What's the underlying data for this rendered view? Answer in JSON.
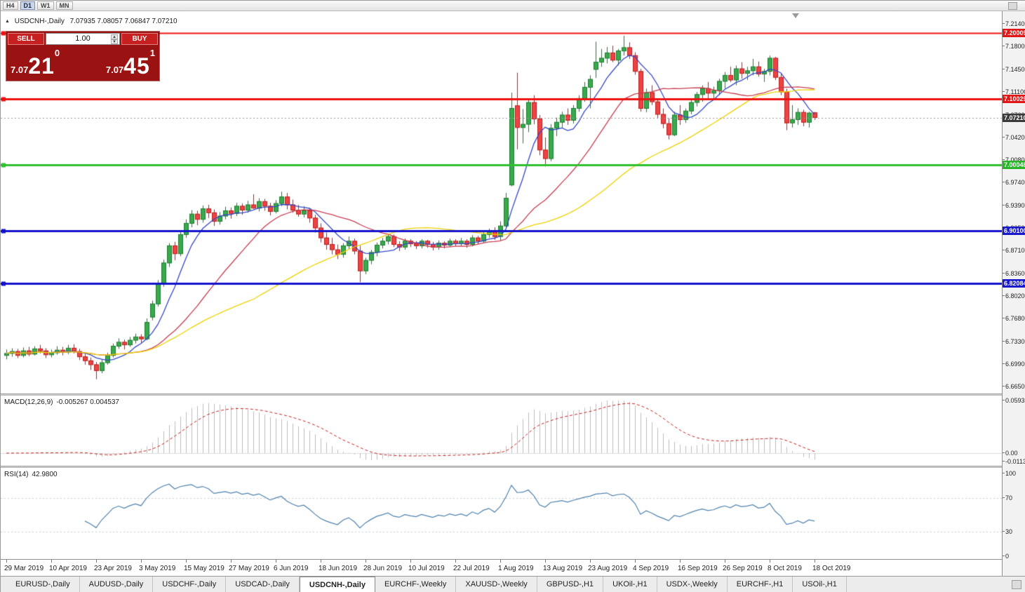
{
  "colors": {
    "trade_panel_bg": "#9b1212",
    "trade_button_bg": "#c62020",
    "up_candle": "#3aa94d",
    "down_candle": "#ef4242",
    "chart_background": "#ffffff"
  },
  "toolbar": {
    "timeframes": [
      {
        "label": "H4",
        "active": false
      },
      {
        "label": "D1",
        "active": true
      },
      {
        "label": "W1",
        "active": false
      },
      {
        "label": "MN",
        "active": false
      }
    ]
  },
  "chart": {
    "title_symbol": "USDCNH-,Daily",
    "title_ohlc": "7.07935 7.08057 7.06847 7.07210"
  },
  "trade_panel": {
    "sell_label": "SELL",
    "buy_label": "BUY",
    "volume": "1.00",
    "sell_price_small": "7.07",
    "sell_price_big": "21",
    "sell_price_sup": "0",
    "buy_price_small": "7.07",
    "buy_price_big": "45",
    "buy_price_sup": "1"
  },
  "price_axis": {
    "ticks": [
      {
        "label": "7.21400",
        "value": 7.214
      },
      {
        "label": "7.18000",
        "value": 7.18
      },
      {
        "label": "7.14500",
        "value": 7.145
      },
      {
        "label": "7.11100",
        "value": 7.111
      },
      {
        "label": "7.07600",
        "value": 7.076
      },
      {
        "label": "7.04200",
        "value": 7.042
      },
      {
        "label": "7.00800",
        "value": 7.008
      },
      {
        "label": "6.97400",
        "value": 6.974
      },
      {
        "label": "6.93900",
        "value": 6.939
      },
      {
        "label": "6.90500",
        "value": 6.905
      },
      {
        "label": "6.87100",
        "value": 6.871
      },
      {
        "label": "6.83600",
        "value": 6.836
      },
      {
        "label": "6.80200",
        "value": 6.802
      },
      {
        "label": "6.76800",
        "value": 6.768
      },
      {
        "label": "6.73300",
        "value": 6.733
      },
      {
        "label": "6.69900",
        "value": 6.699
      },
      {
        "label": "6.66500",
        "value": 6.665
      }
    ],
    "badges": [
      {
        "label": "7.20009",
        "value": 7.20009,
        "color": "#e01717",
        "kind": "level"
      },
      {
        "label": "7.10029",
        "value": 7.10029,
        "color": "#e01717",
        "kind": "level"
      },
      {
        "label": "7.07210",
        "value": 7.0721,
        "color": "#3a3a3a",
        "kind": "bid"
      },
      {
        "label": "7.00048",
        "value": 7.00048,
        "color": "#2ab42a",
        "kind": "level"
      },
      {
        "label": "6.90100",
        "value": 6.901,
        "color": "#1a1acc",
        "kind": "level"
      },
      {
        "label": "6.82084",
        "value": 6.82084,
        "color": "#1a1acc",
        "kind": "level"
      }
    ]
  },
  "hlines": [
    {
      "value": 7.20009,
      "color": "#ee1111",
      "width": 2
    },
    {
      "value": 7.10029,
      "color": "#ee1111",
      "width": 3
    },
    {
      "value": 7.00048,
      "color": "#2fbf2f",
      "width": 3
    },
    {
      "value": 6.901,
      "color": "#1212cc",
      "width": 3
    },
    {
      "value": 6.82084,
      "color": "#1212cc",
      "width": 3
    }
  ],
  "chart_data": {
    "type": "candlestick",
    "symbol": "USDCNH-",
    "timeframe": "Daily",
    "price_range": [
      6.6544,
      7.2331
    ],
    "x_labels": [
      "29 Mar 2019",
      "10 Apr 2019",
      "23 Apr 2019",
      "3 May 2019",
      "15 May 2019",
      "27 May 2019",
      "6 Jun 2019",
      "18 Jun 2019",
      "28 Jun 2019",
      "10 Jul 2019",
      "22 Jul 2019",
      "1 Aug 2019",
      "13 Aug 2019",
      "23 Aug 2019",
      "4 Sep 2019",
      "16 Sep 2019",
      "26 Sep 2019",
      "8 Oct 2019",
      "18 Oct 2019"
    ],
    "candles": [
      [
        6.712,
        6.721,
        6.706,
        6.715
      ],
      [
        6.715,
        6.723,
        6.71,
        6.718
      ],
      [
        6.718,
        6.722,
        6.708,
        6.712
      ],
      [
        6.712,
        6.724,
        6.709,
        6.719
      ],
      [
        6.719,
        6.725,
        6.711,
        6.714
      ],
      [
        6.714,
        6.726,
        6.712,
        6.722
      ],
      [
        6.722,
        6.728,
        6.715,
        6.719
      ],
      [
        6.719,
        6.723,
        6.708,
        6.713
      ],
      [
        6.713,
        6.721,
        6.709,
        6.716
      ],
      [
        6.716,
        6.726,
        6.713,
        6.72
      ],
      [
        6.72,
        6.725,
        6.712,
        6.717
      ],
      [
        6.717,
        6.728,
        6.714,
        6.723
      ],
      [
        6.723,
        6.729,
        6.715,
        6.718
      ],
      [
        6.718,
        6.722,
        6.705,
        6.71
      ],
      [
        6.71,
        6.715,
        6.698,
        6.704
      ],
      [
        6.704,
        6.709,
        6.69,
        6.698
      ],
      [
        6.698,
        6.702,
        6.676,
        6.689
      ],
      [
        6.689,
        6.706,
        6.685,
        6.701
      ],
      [
        6.701,
        6.716,
        6.698,
        6.712
      ],
      [
        6.712,
        6.73,
        6.709,
        6.726
      ],
      [
        6.726,
        6.738,
        6.722,
        6.732
      ],
      [
        6.732,
        6.736,
        6.721,
        6.728
      ],
      [
        6.728,
        6.74,
        6.725,
        6.735
      ],
      [
        6.735,
        6.745,
        6.73,
        6.74
      ],
      [
        6.74,
        6.744,
        6.731,
        6.737
      ],
      [
        6.737,
        6.768,
        6.735,
        6.762
      ],
      [
        6.77,
        6.795,
        6.765,
        6.79
      ],
      [
        6.79,
        6.826,
        6.786,
        6.821
      ],
      [
        6.821,
        6.857,
        6.816,
        6.852
      ],
      [
        6.852,
        6.882,
        6.846,
        6.878
      ],
      [
        6.878,
        6.884,
        6.856,
        6.866
      ],
      [
        6.866,
        6.9,
        6.862,
        6.895
      ],
      [
        6.895,
        6.918,
        6.89,
        6.912
      ],
      [
        6.912,
        6.932,
        6.906,
        6.926
      ],
      [
        6.926,
        6.931,
        6.909,
        6.918
      ],
      [
        6.918,
        6.939,
        6.913,
        6.934
      ],
      [
        6.934,
        6.94,
        6.92,
        6.928
      ],
      [
        6.928,
        6.933,
        6.908,
        6.915
      ],
      [
        6.915,
        6.929,
        6.91,
        6.923
      ],
      [
        6.923,
        6.937,
        6.918,
        6.931
      ],
      [
        6.931,
        6.936,
        6.919,
        6.927
      ],
      [
        6.927,
        6.943,
        6.923,
        6.938
      ],
      [
        6.938,
        6.942,
        6.925,
        6.932
      ],
      [
        6.932,
        6.946,
        6.928,
        6.94
      ],
      [
        6.94,
        6.956,
        6.934,
        6.935
      ],
      [
        6.935,
        6.95,
        6.93,
        6.945
      ],
      [
        6.945,
        6.949,
        6.931,
        6.938
      ],
      [
        6.938,
        6.943,
        6.924,
        6.93
      ],
      [
        6.93,
        6.947,
        6.927,
        6.942
      ],
      [
        6.942,
        6.96,
        6.938,
        6.952
      ],
      [
        6.952,
        6.958,
        6.933,
        6.94
      ],
      [
        6.94,
        6.948,
        6.928,
        6.932
      ],
      [
        6.932,
        6.94,
        6.922,
        6.926
      ],
      [
        6.926,
        6.938,
        6.921,
        6.931
      ],
      [
        6.931,
        6.935,
        6.913,
        6.92
      ],
      [
        6.92,
        6.925,
        6.898,
        6.905
      ],
      [
        6.905,
        6.912,
        6.883,
        6.89
      ],
      [
        6.89,
        6.898,
        6.872,
        6.88
      ],
      [
        6.88,
        6.89,
        6.865,
        6.872
      ],
      [
        6.872,
        6.88,
        6.858,
        6.865
      ],
      [
        6.865,
        6.882,
        6.86,
        6.878
      ],
      [
        6.878,
        6.892,
        6.873,
        6.885
      ],
      [
        6.885,
        6.889,
        6.865,
        6.87
      ],
      [
        6.87,
        6.878,
        6.823,
        6.84
      ],
      [
        6.84,
        6.86,
        6.835,
        6.856
      ],
      [
        6.856,
        6.872,
        6.85,
        6.868
      ],
      [
        6.868,
        6.883,
        6.862,
        6.879
      ],
      [
        6.879,
        6.89,
        6.874,
        6.885
      ],
      [
        6.885,
        6.896,
        6.88,
        6.892
      ],
      [
        6.892,
        6.895,
        6.876,
        6.88
      ],
      [
        6.88,
        6.885,
        6.87,
        6.876
      ],
      [
        6.876,
        6.889,
        6.872,
        6.885
      ],
      [
        6.885,
        6.888,
        6.876,
        6.881
      ],
      [
        6.881,
        6.885,
        6.873,
        6.878
      ],
      [
        6.878,
        6.888,
        6.874,
        6.885
      ],
      [
        6.885,
        6.887,
        6.875,
        6.88
      ],
      [
        6.88,
        6.884,
        6.871,
        6.876
      ],
      [
        6.876,
        6.886,
        6.872,
        6.882
      ],
      [
        6.882,
        6.885,
        6.874,
        6.879
      ],
      [
        6.879,
        6.889,
        6.876,
        6.885
      ],
      [
        6.885,
        6.888,
        6.877,
        6.881
      ],
      [
        6.881,
        6.89,
        6.878,
        6.885
      ],
      [
        6.885,
        6.888,
        6.875,
        6.88
      ],
      [
        6.88,
        6.894,
        6.877,
        6.89
      ],
      [
        6.89,
        6.893,
        6.88,
        6.885
      ],
      [
        6.885,
        6.899,
        6.882,
        6.895
      ],
      [
        6.895,
        6.904,
        6.89,
        6.9
      ],
      [
        6.9,
        6.906,
        6.887,
        6.892
      ],
      [
        6.892,
        6.915,
        6.886,
        6.908
      ],
      [
        6.908,
        6.958,
        6.904,
        6.95
      ],
      [
        6.97,
        7.11,
        6.968,
        7.086
      ],
      [
        7.09,
        7.14,
        7.024,
        7.057
      ],
      [
        7.057,
        7.085,
        7.033,
        7.062
      ],
      [
        7.062,
        7.1,
        7.05,
        7.095
      ],
      [
        7.095,
        7.106,
        7.062,
        7.07
      ],
      [
        7.07,
        7.076,
        7.015,
        7.023
      ],
      [
        7.023,
        7.042,
        6.998,
        7.01
      ],
      [
        7.01,
        7.062,
        7.006,
        7.056
      ],
      [
        7.056,
        7.072,
        7.044,
        7.065
      ],
      [
        7.065,
        7.081,
        7.057,
        7.076
      ],
      [
        7.076,
        7.086,
        7.061,
        7.068
      ],
      [
        7.068,
        7.091,
        7.063,
        7.086
      ],
      [
        7.086,
        7.106,
        7.081,
        7.101
      ],
      [
        7.101,
        7.126,
        7.096,
        7.118
      ],
      [
        7.118,
        7.136,
        7.086,
        7.13
      ],
      [
        7.145,
        7.187,
        7.132,
        7.156
      ],
      [
        7.156,
        7.176,
        7.149,
        7.162
      ],
      [
        7.162,
        7.179,
        7.154,
        7.17
      ],
      [
        7.17,
        7.181,
        7.156,
        7.159
      ],
      [
        7.159,
        7.176,
        7.151,
        7.173
      ],
      [
        7.173,
        7.196,
        7.166,
        7.178
      ],
      [
        7.178,
        7.186,
        7.161,
        7.166
      ],
      [
        7.166,
        7.171,
        7.137,
        7.142
      ],
      [
        7.142,
        7.146,
        7.081,
        7.086
      ],
      [
        7.086,
        7.116,
        7.08,
        7.11
      ],
      [
        7.11,
        7.121,
        7.091,
        7.096
      ],
      [
        7.096,
        7.101,
        7.071,
        7.077
      ],
      [
        7.077,
        7.086,
        7.056,
        7.063
      ],
      [
        7.063,
        7.071,
        7.039,
        7.046
      ],
      [
        7.046,
        7.081,
        7.044,
        7.076
      ],
      [
        7.076,
        7.091,
        7.061,
        7.069
      ],
      [
        7.069,
        7.086,
        7.064,
        7.082
      ],
      [
        7.082,
        7.099,
        7.077,
        7.095
      ],
      [
        7.095,
        7.111,
        7.089,
        7.107
      ],
      [
        7.107,
        7.121,
        7.096,
        7.116
      ],
      [
        7.116,
        7.126,
        7.101,
        7.109
      ],
      [
        7.109,
        7.119,
        7.099,
        7.113
      ],
      [
        7.113,
        7.131,
        7.106,
        7.127
      ],
      [
        7.127,
        7.141,
        7.116,
        7.136
      ],
      [
        7.136,
        7.149,
        7.126,
        7.129
      ],
      [
        7.129,
        7.151,
        7.121,
        7.146
      ],
      [
        7.146,
        7.156,
        7.131,
        7.139
      ],
      [
        7.139,
        7.149,
        7.129,
        7.143
      ],
      [
        7.143,
        7.161,
        7.136,
        7.149
      ],
      [
        7.149,
        7.157,
        7.134,
        7.138
      ],
      [
        7.138,
        7.146,
        7.126,
        7.142
      ],
      [
        7.142,
        7.166,
        7.136,
        7.162
      ],
      [
        7.162,
        7.164,
        7.129,
        7.133
      ],
      [
        7.133,
        7.139,
        7.106,
        7.111
      ],
      [
        7.111,
        7.116,
        7.053,
        7.064
      ],
      [
        7.064,
        7.091,
        7.057,
        7.069
      ],
      [
        7.069,
        7.086,
        7.061,
        7.08
      ],
      [
        7.08,
        7.084,
        7.059,
        7.065
      ],
      [
        7.065,
        7.081,
        7.057,
        7.079
      ],
      [
        7.0794,
        7.0806,
        7.0685,
        7.0721
      ]
    ],
    "moving_averages": [
      {
        "name": "MA fast",
        "period": 7,
        "color": "#3548c8"
      },
      {
        "name": "MA medium",
        "period": 21,
        "color": "#c83c50"
      },
      {
        "name": "MA slow",
        "period": 45,
        "color": "#ecd200"
      }
    ],
    "indicators": {
      "macd": {
        "label": "MACD(12,26,9)",
        "values_text": "-0.005267 0.004537",
        "params": [
          12,
          26,
          9
        ],
        "axis_labels": [
          "0.0593",
          "0.00",
          "-0.0113"
        ],
        "histogram_color": "#bdbdbd",
        "signal_color": "#c42020"
      },
      "rsi": {
        "label": "RSI(14)",
        "value_text": "42.9800",
        "period": 14,
        "axis_labels": [
          "100",
          "70",
          "30",
          "0"
        ],
        "axis_values": [
          100,
          70,
          30,
          0
        ],
        "levels": [
          70,
          30
        ],
        "line_color": "#4f81ab"
      }
    }
  },
  "tabs": [
    {
      "label": "EURUSD-,Daily",
      "active": false
    },
    {
      "label": "AUDUSD-,Daily",
      "active": false
    },
    {
      "label": "USDCHF-,Daily",
      "active": false
    },
    {
      "label": "USDCAD-,Daily",
      "active": false
    },
    {
      "label": "USDCNH-,Daily",
      "active": true
    },
    {
      "label": "EURCHF-,Weekly",
      "active": false
    },
    {
      "label": "XAUUSD-,Weekly",
      "active": false
    },
    {
      "label": "GBPUSD-,H1",
      "active": false
    },
    {
      "label": "UKOil-,H1",
      "active": false
    },
    {
      "label": "USDX-,Weekly",
      "active": false
    },
    {
      "label": "EURCHF-,H1",
      "active": false
    },
    {
      "label": "USOil-,H1",
      "active": false
    }
  ]
}
